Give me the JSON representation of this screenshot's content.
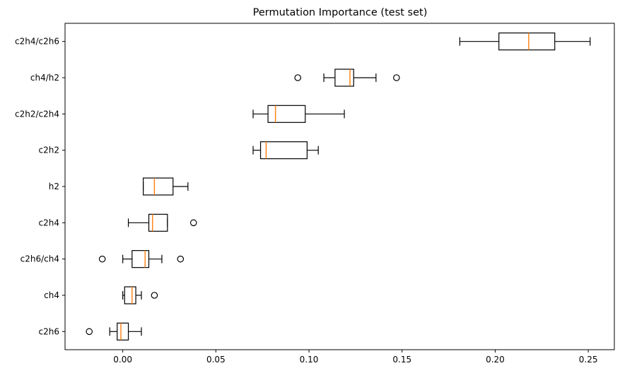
{
  "chart_data": {
    "type": "boxplot",
    "orientation": "horizontal",
    "title": "Permutation Importance (test set)",
    "xlim": [
      -0.031,
      0.264
    ],
    "xticks": [
      {
        "value": 0.0,
        "label": "0.00"
      },
      {
        "value": 0.05,
        "label": "0.05"
      },
      {
        "value": 0.1,
        "label": "0.10"
      },
      {
        "value": 0.15,
        "label": "0.15"
      },
      {
        "value": 0.2,
        "label": "0.20"
      },
      {
        "value": 0.25,
        "label": "0.25"
      }
    ],
    "grid": false,
    "series": [
      {
        "name": "c2h4/c2h6",
        "whislo": 0.181,
        "q1": 0.202,
        "med": 0.218,
        "q3": 0.232,
        "whishi": 0.251,
        "fliers": []
      },
      {
        "name": "ch4/h2",
        "whislo": 0.108,
        "q1": 0.114,
        "med": 0.122,
        "q3": 0.124,
        "whishi": 0.136,
        "fliers": [
          0.094,
          0.147
        ]
      },
      {
        "name": "c2h2/c2h4",
        "whislo": 0.07,
        "q1": 0.078,
        "med": 0.082,
        "q3": 0.098,
        "whishi": 0.119,
        "fliers": []
      },
      {
        "name": "c2h2",
        "whislo": 0.07,
        "q1": 0.074,
        "med": 0.077,
        "q3": 0.099,
        "whishi": 0.105,
        "fliers": []
      },
      {
        "name": "h2",
        "whislo": 0.011,
        "q1": 0.011,
        "med": 0.017,
        "q3": 0.027,
        "whishi": 0.035,
        "fliers": []
      },
      {
        "name": "c2h4",
        "whislo": 0.003,
        "q1": 0.014,
        "med": 0.016,
        "q3": 0.024,
        "whishi": 0.024,
        "fliers": [
          0.038
        ]
      },
      {
        "name": "c2h6/ch4",
        "whislo": 0.0,
        "q1": 0.005,
        "med": 0.012,
        "q3": 0.014,
        "whishi": 0.021,
        "fliers": [
          -0.011,
          0.031
        ]
      },
      {
        "name": "ch4",
        "whislo": 0.0,
        "q1": 0.001,
        "med": 0.005,
        "q3": 0.007,
        "whishi": 0.01,
        "fliers": [
          0.017
        ]
      },
      {
        "name": "c2h6",
        "whislo": -0.007,
        "q1": -0.003,
        "med": -0.001,
        "q3": 0.003,
        "whishi": 0.01,
        "fliers": [
          -0.018
        ]
      }
    ]
  }
}
